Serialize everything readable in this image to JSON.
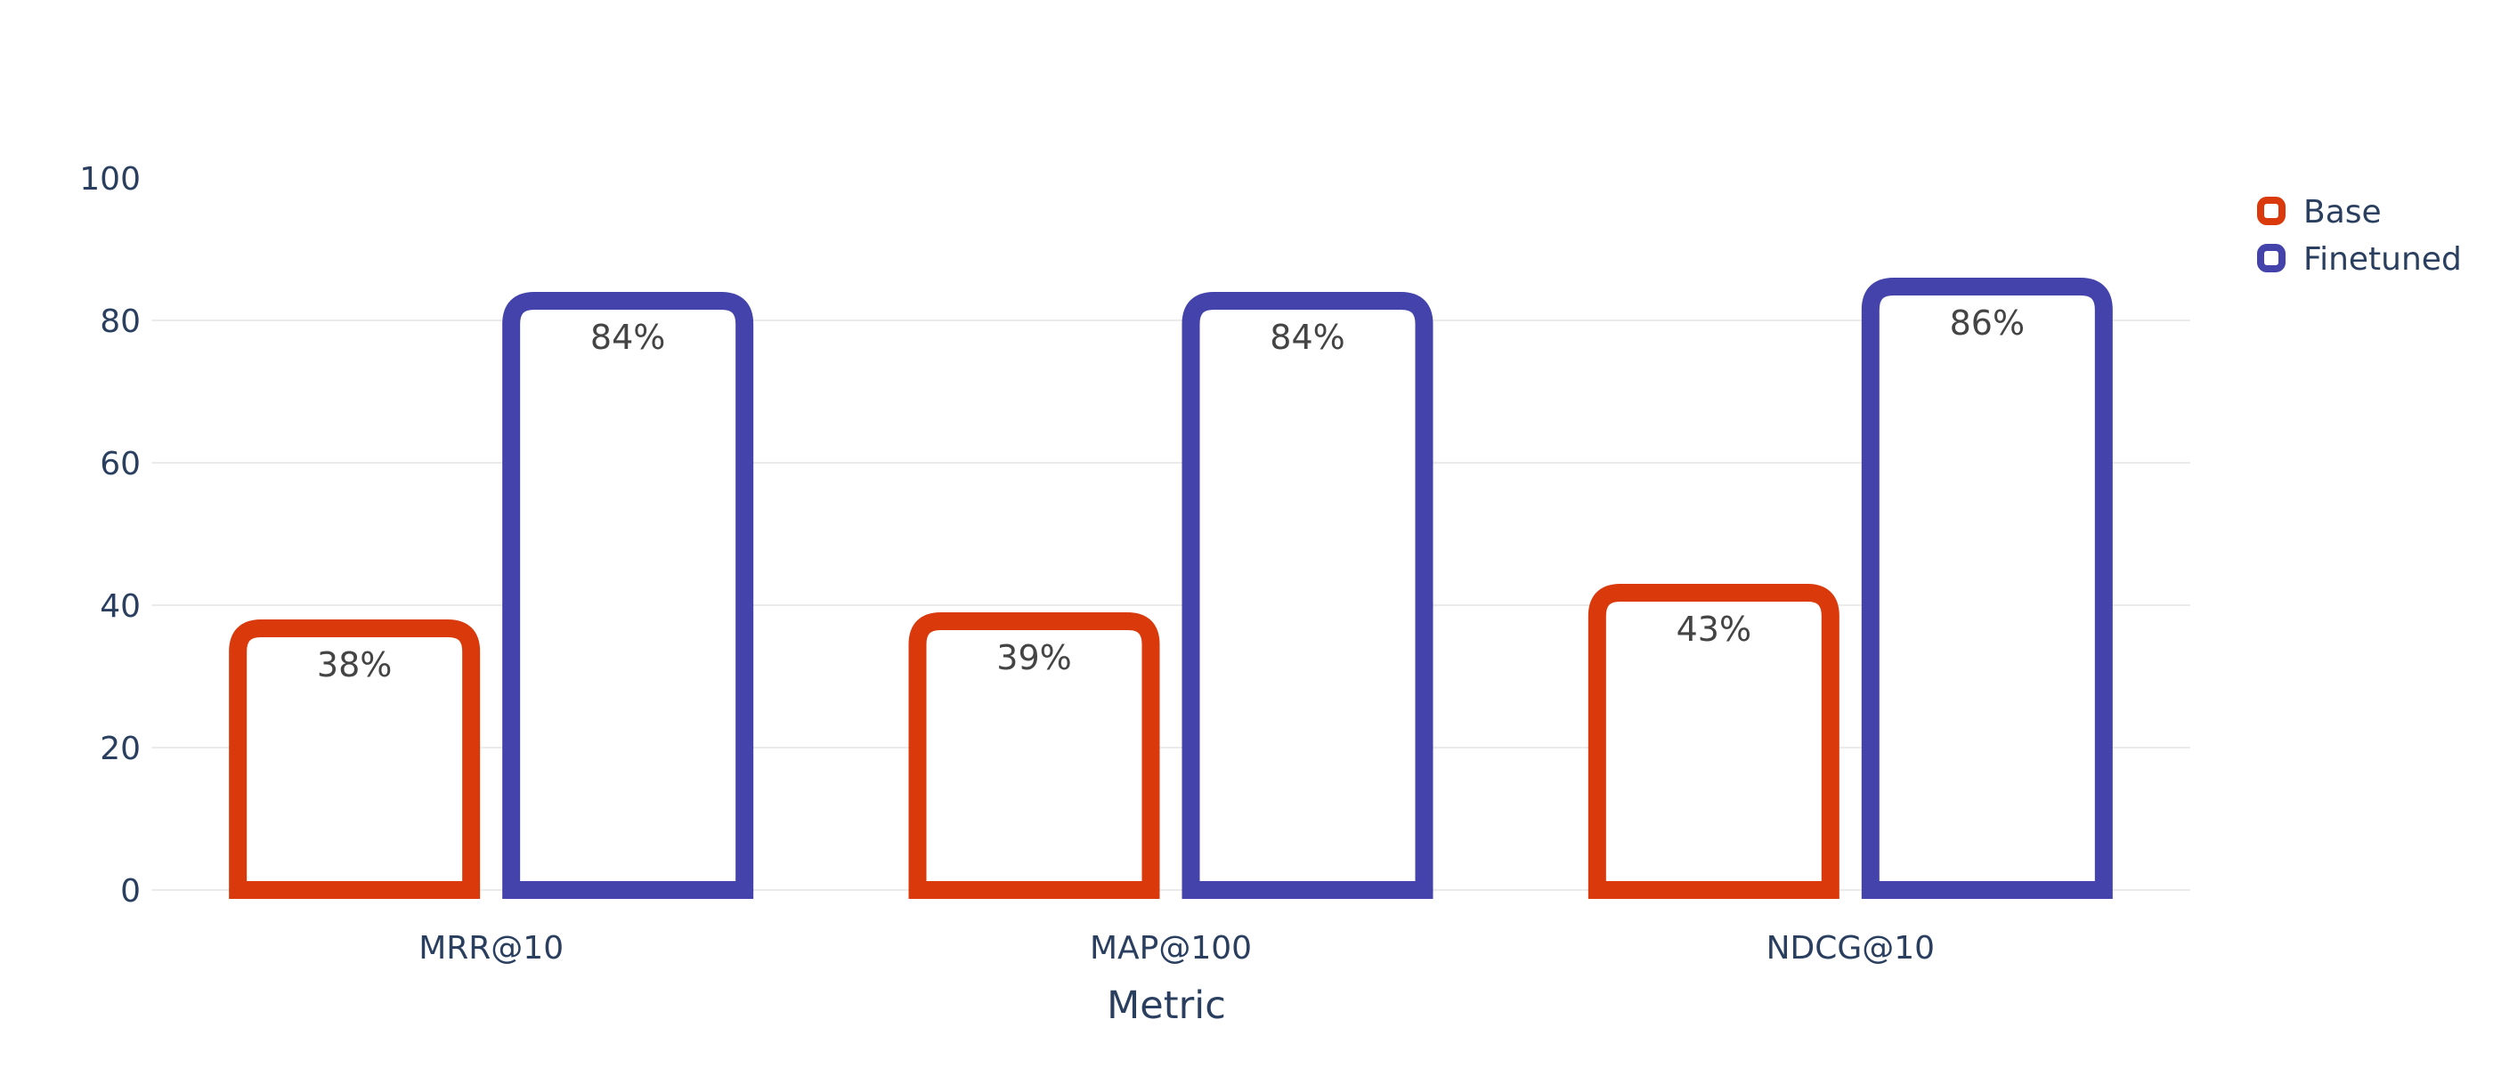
{
  "chart_data": {
    "type": "bar",
    "title": "",
    "xlabel": "Metric",
    "ylabel": "",
    "categories": [
      "MRR@10",
      "MAP@100",
      "NDCG@10"
    ],
    "series": [
      {
        "name": "Base",
        "values": [
          38,
          39,
          43
        ],
        "labels": [
          "38%",
          "39%",
          "43%"
        ],
        "color": "#d9390b"
      },
      {
        "name": "Finetuned",
        "values": [
          84,
          84,
          86
        ],
        "labels": [
          "84%",
          "84%",
          "86%"
        ],
        "color": "#4343ab"
      }
    ],
    "ylim": [
      0,
      100
    ],
    "yticks": [
      0,
      20,
      40,
      60,
      80,
      100
    ],
    "grid": true,
    "legend_position": "top-right"
  }
}
